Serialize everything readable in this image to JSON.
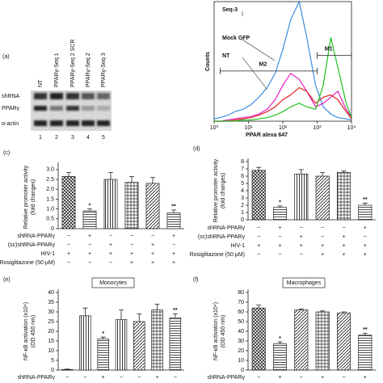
{
  "blot": {
    "panel": "(a)",
    "lanes": [
      "NT",
      "PPARγ-Seq 1",
      "PPARγ-Seq 2 SCR",
      "PPARγ-Seq 2",
      "PPARγ-Seq 3"
    ],
    "lane_numbers": [
      1,
      2,
      3,
      4,
      5
    ],
    "rows": [
      "shRNA",
      "PPARγ",
      "α-actin"
    ]
  },
  "chart_data": [
    {
      "type": "line",
      "xlabel": "PPAR alexa 647",
      "ylabel": "Counts",
      "xscale": "log",
      "xlim": [
        1,
        10000
      ],
      "ylim": [
        0,
        100
      ],
      "xticks": [
        {
          "value": 1,
          "label": "10⁰"
        },
        {
          "value": 10,
          "label": "10¹"
        },
        {
          "value": 100,
          "label": "10²"
        },
        {
          "value": 1000,
          "label": "10³"
        },
        {
          "value": 10000,
          "label": "10⁴"
        }
      ],
      "x": [
        1,
        1.5,
        2.5,
        4,
        7,
        12,
        20,
        35,
        60,
        100,
        170,
        300,
        500,
        900,
        1500,
        2500,
        4000,
        7000,
        10000
      ],
      "series": [
        {
          "name": "Seq-3",
          "color": "#3a8fe0",
          "values": [
            2,
            3,
            5,
            8,
            10,
            14,
            20,
            28,
            40,
            60,
            85,
            100,
            70,
            30,
            12,
            6,
            3,
            2,
            1
          ]
        },
        {
          "name": "Mock GFP",
          "color": "#e020c0",
          "values": [
            0,
            0,
            1,
            2,
            3,
            4,
            6,
            10,
            18,
            30,
            40,
            35,
            25,
            12,
            15,
            20,
            25,
            10,
            3
          ]
        },
        {
          "name": "NT",
          "color": "#e02020",
          "values": [
            0,
            0,
            0,
            1,
            2,
            3,
            5,
            8,
            12,
            18,
            22,
            28,
            25,
            15,
            20,
            22,
            18,
            8,
            2
          ]
        },
        {
          "color": "#20c020",
          "values": [
            0,
            0,
            0,
            0,
            1,
            1,
            2,
            3,
            5,
            8,
            12,
            15,
            12,
            10,
            30,
            70,
            45,
            15,
            3
          ]
        }
      ],
      "gates": [
        {
          "label": "M1",
          "range": [
            1000,
            10000
          ],
          "level": 55
        },
        {
          "label": "M2",
          "range": [
            1.5,
            1000
          ],
          "level": 42
        }
      ]
    },
    {
      "type": "bar",
      "panel": "(c)",
      "ylabel": [
        "Relative promoter activity",
        "(fold changes)"
      ],
      "ylim": [
        0,
        3.2
      ],
      "yticks": [
        0,
        0.5,
        {
          "value": 1,
          "label": "1.0"
        },
        1.5,
        {
          "value": 2,
          "label": "2.0"
        },
        2.5,
        {
          "value": 3,
          "label": "3.0"
        }
      ],
      "values": [
        2.65,
        0.9,
        2.5,
        2.35,
        2.3,
        0.8
      ],
      "errors": [
        0.2,
        0.1,
        0.35,
        0.3,
        0.3,
        0.15
      ],
      "significance": [
        null,
        "*",
        null,
        null,
        null,
        "**"
      ],
      "hatches": [
        "cross",
        "hlines",
        "vlines",
        "grid",
        "diag",
        "hlines"
      ],
      "conditions": {
        "rows": [
          "shRNA-PPARγ",
          "(sc)shRNA-PPARγ",
          "HIV-1",
          "Rosiglitazone (50 µM)"
        ],
        "signs": [
          [
            "−",
            "+",
            "−",
            "−",
            "−",
            "+"
          ],
          [
            "−",
            "−",
            "+",
            "−",
            "+",
            "−"
          ],
          [
            "+",
            "+",
            "+",
            "+",
            "+",
            "+"
          ],
          [
            "−",
            "−",
            "−",
            "+",
            "+",
            "+"
          ]
        ]
      }
    },
    {
      "type": "bar",
      "panel": "(d)",
      "ylabel": [
        "Relative promoter activity",
        "(fold changes)"
      ],
      "ylim": [
        0,
        8
      ],
      "yticks": [
        0,
        1,
        2,
        3,
        4,
        5,
        6,
        7,
        8
      ],
      "values": [
        6.8,
        1.7,
        6.3,
        6.0,
        6.5,
        2.0
      ],
      "errors": [
        0.4,
        0.2,
        0.6,
        0.5,
        0.2,
        0.3
      ],
      "significance": [
        null,
        "*",
        null,
        null,
        null,
        "**"
      ],
      "hatches": [
        "cross",
        "hlines",
        "vlines",
        "diag",
        "grid",
        "hlines"
      ],
      "conditions": {
        "rows": [
          "shRNA-PPARγ",
          "(sc)shRNA-PPARγ",
          "HIV-1",
          "Rosiglitazone (50 µM)"
        ],
        "signs": [
          [
            "−",
            "+",
            "−",
            "−",
            "−",
            "+"
          ],
          [
            "−",
            "−",
            "+",
            "−",
            "+",
            "−"
          ],
          [
            "+",
            "+",
            "+",
            "+",
            "+",
            "+"
          ],
          [
            "−",
            "−",
            "−",
            "+",
            "+",
            "+"
          ]
        ]
      }
    },
    {
      "type": "bar",
      "panel": "(e)",
      "title": "Monocytes",
      "ylabel": [
        "NF-κB activation (x10⁴)",
        "(OD 450 nm)"
      ],
      "ylim": [
        0,
        40
      ],
      "yticks": [
        0,
        5,
        10,
        15,
        20,
        25,
        30,
        35,
        40
      ],
      "values": [
        0.3,
        28,
        16,
        26,
        25,
        31,
        27
      ],
      "errors": [
        0.2,
        4,
        1,
        5,
        4,
        3,
        2
      ],
      "significance": [
        null,
        null,
        "*",
        null,
        null,
        null,
        "**"
      ],
      "hatches": [
        "hlines",
        "vlines",
        "hlines",
        "vlines",
        "diag",
        "grid",
        "hlines"
      ],
      "conditions": {
        "rows": [
          "shRNA-PPARγ"
        ],
        "signs": [
          [
            "−",
            "−",
            "+",
            "−",
            "−",
            "+",
            "−"
          ]
        ]
      }
    },
    {
      "type": "bar",
      "panel": "(f)",
      "title": "Macrophages",
      "ylabel": [
        "NF-κB activation (x10⁴)",
        "(OD 450 nm)"
      ],
      "ylim": [
        0,
        80
      ],
      "yticks": [
        0,
        10,
        20,
        30,
        40,
        50,
        60,
        70,
        80
      ],
      "values": [
        64,
        27,
        62,
        60,
        59,
        36
      ],
      "errors": [
        3,
        2,
        1,
        1,
        1,
        2
      ],
      "significance": [
        null,
        "*",
        null,
        null,
        null,
        "**"
      ],
      "hatches": [
        "cross",
        "hlines",
        "diag",
        "grid",
        "diag",
        "hlines"
      ],
      "conditions": {
        "rows": [
          "shRNA-PPARγ"
        ],
        "signs": [
          [
            "−",
            "+",
            "−",
            "+",
            "−",
            "+"
          ]
        ]
      }
    }
  ]
}
